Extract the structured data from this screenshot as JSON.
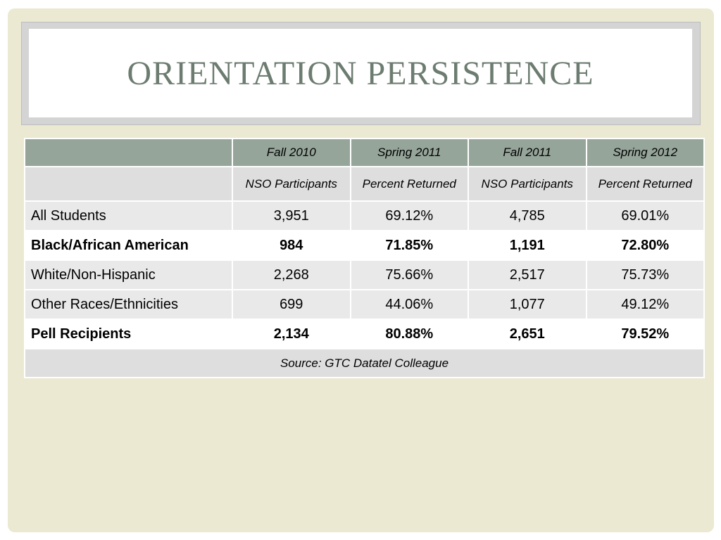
{
  "title": "ORIENTATION PERSISTENCE",
  "table": {
    "header": [
      "",
      "Fall 2010",
      "Spring 2011",
      "Fall 2011",
      "Spring 2012"
    ],
    "subheader": [
      "",
      "NSO Participants",
      "Percent Returned",
      "NSO Participants",
      "Percent Returned"
    ],
    "rows": [
      [
        "All Students",
        "3,951",
        "69.12%",
        "4,785",
        "69.01%"
      ],
      [
        "Black/African American",
        "984",
        "71.85%",
        "1,191",
        "72.80%"
      ],
      [
        "White/Non-Hispanic",
        "2,268",
        "75.66%",
        "2,517",
        "75.73%"
      ],
      [
        "Other Races/Ethnicities",
        "699",
        "44.06%",
        "1,077",
        "49.12%"
      ],
      [
        "Pell Recipients",
        "2,134",
        "80.88%",
        "2,651",
        "79.52%"
      ]
    ],
    "source": "Source:  GTC Datatel Colleague"
  },
  "colors": {
    "background": "#ebe9d2",
    "header": "#95a59a",
    "title": "#6c7c70"
  }
}
